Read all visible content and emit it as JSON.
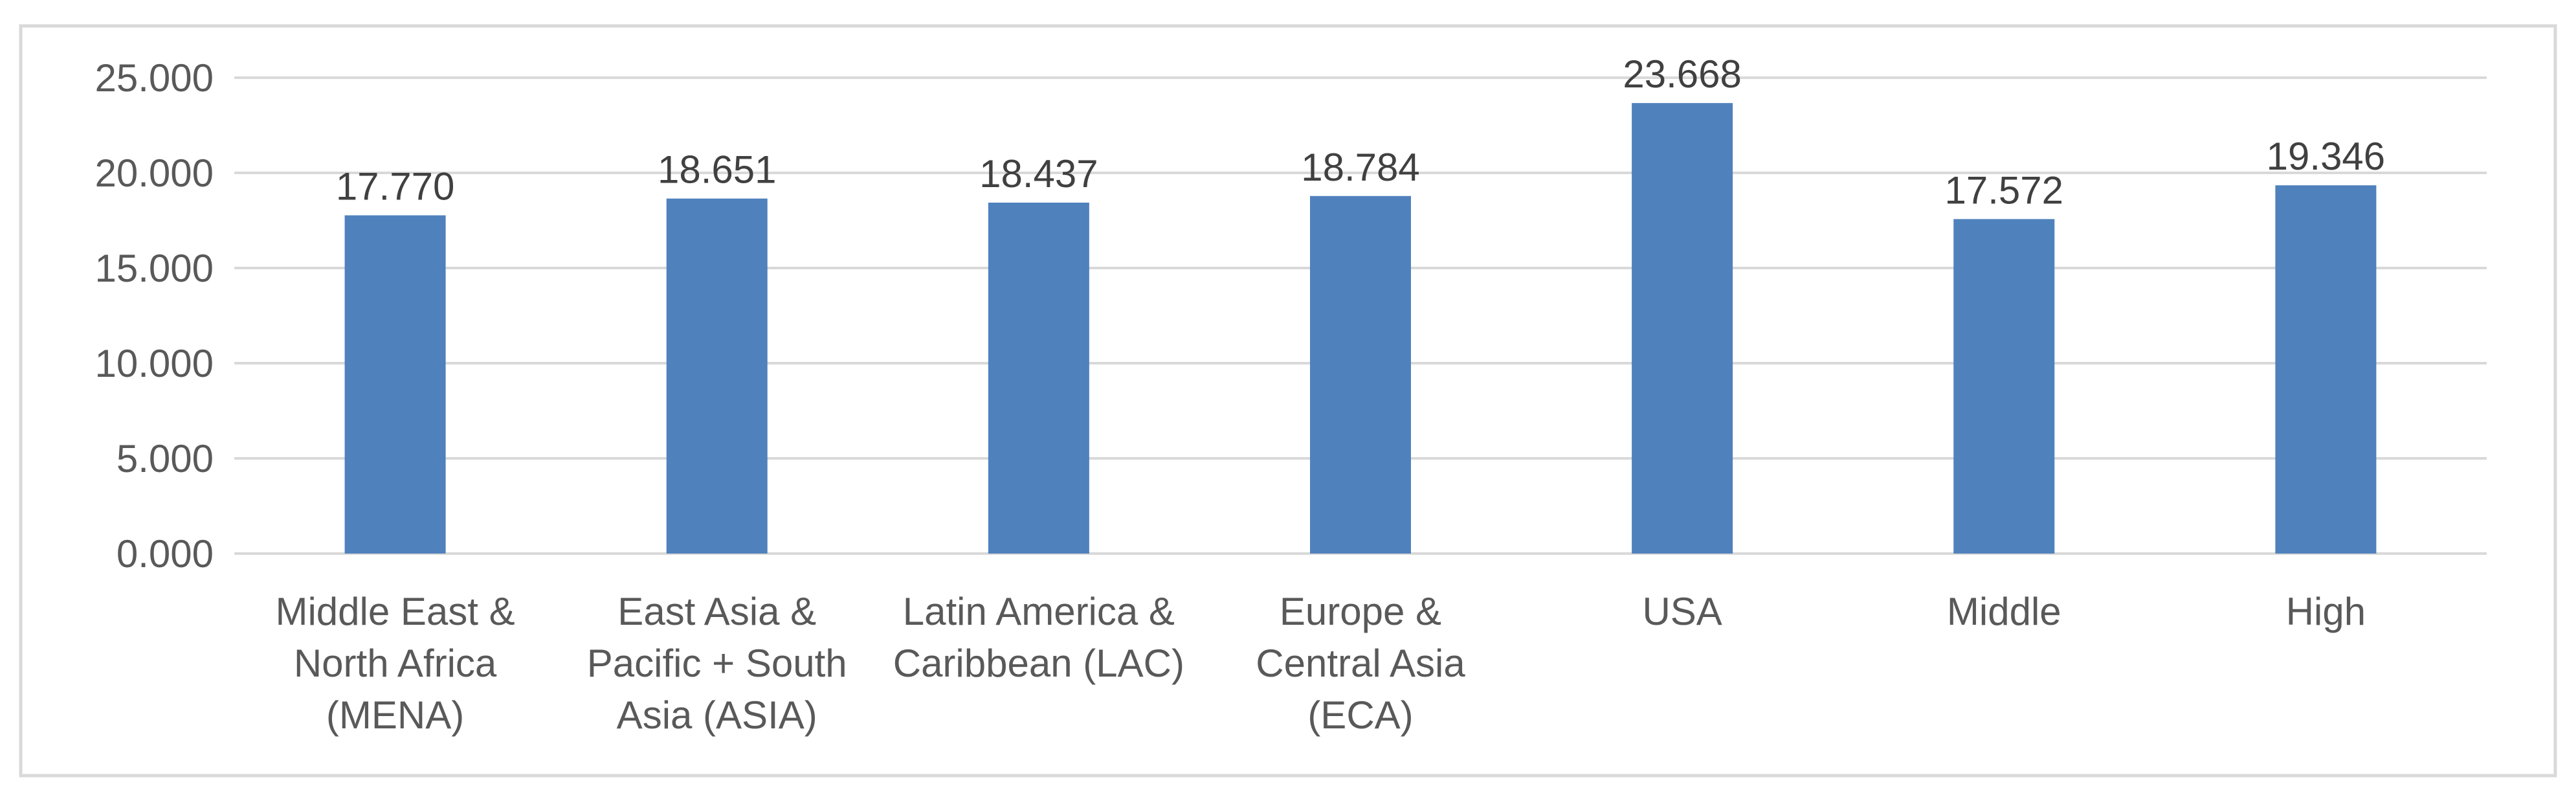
{
  "chart_data": {
    "type": "bar",
    "title": "",
    "xlabel": "",
    "ylabel": "",
    "categories": [
      [
        "Middle East &",
        "North Africa",
        "(MENA)"
      ],
      [
        "East Asia &",
        "Pacific + South",
        "Asia (ASIA)"
      ],
      [
        "Latin America &",
        "Caribbean (LAC)"
      ],
      [
        "Europe &",
        "Central Asia",
        "(ECA)"
      ],
      [
        "USA"
      ],
      [
        "Middle"
      ],
      [
        "High"
      ]
    ],
    "values": [
      17.77,
      18.651,
      18.437,
      18.784,
      23.668,
      17.572,
      19.346
    ],
    "value_labels": [
      "17.770",
      "18.651",
      "18.437",
      "18.784",
      "23.668",
      "17.572",
      "19.346"
    ],
    "ylim": [
      0,
      25
    ],
    "y_ticks": [
      0,
      5,
      10,
      15,
      20,
      25
    ],
    "y_tick_labels": [
      "0.000",
      "5.000",
      "10.000",
      "15.000",
      "20.000",
      "25.000"
    ],
    "grid": true,
    "legend": "none",
    "bar_color": "#4F81BD",
    "grid_color": "#D9D9D9",
    "border_color": "#D9D9D9"
  }
}
